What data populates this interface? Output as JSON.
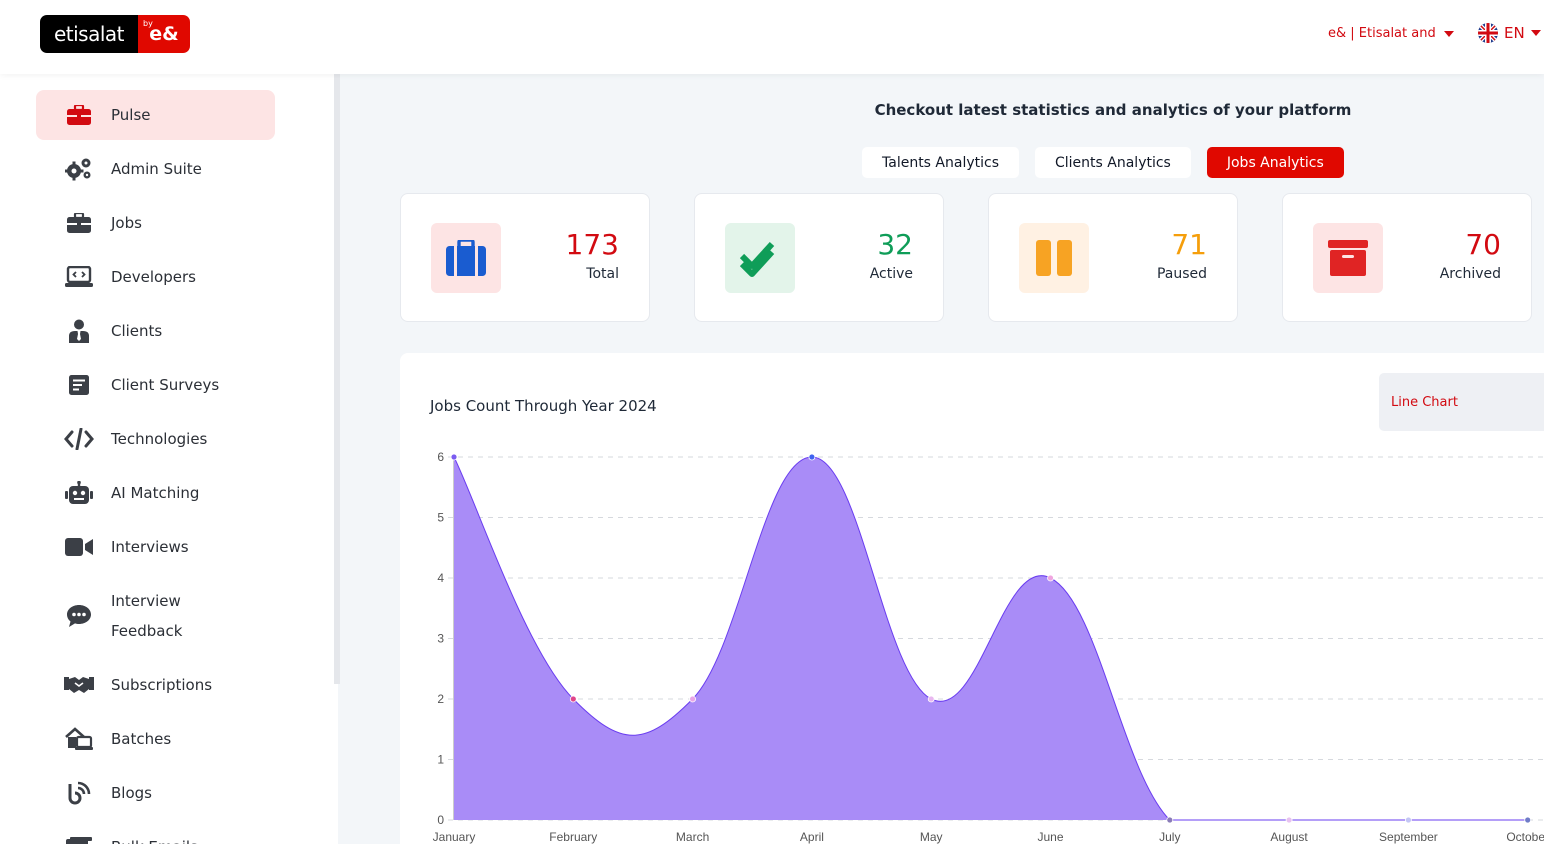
{
  "header": {
    "logo_text": "etisalat",
    "logo_by": "by",
    "logo_mark": "e&",
    "company": "e& | Etisalat and",
    "language": "EN"
  },
  "sidebar": {
    "items": [
      {
        "label": "Pulse",
        "icon": "briefcase-icon",
        "active": true
      },
      {
        "label": "Admin Suite",
        "icon": "gears-icon"
      },
      {
        "label": "Jobs",
        "icon": "briefcase-icon"
      },
      {
        "label": "Developers",
        "icon": "laptop-code-icon"
      },
      {
        "label": "Clients",
        "icon": "user-tie-icon"
      },
      {
        "label": "Client Surveys",
        "icon": "survey-icon"
      },
      {
        "label": "Technologies",
        "icon": "code-icon"
      },
      {
        "label": "AI Matching",
        "icon": "robot-icon"
      },
      {
        "label": "Interviews",
        "icon": "video-icon"
      },
      {
        "label": "Interview",
        "label2": "Feedback",
        "icon": "comment-dots-icon"
      },
      {
        "label": "Subscriptions",
        "icon": "handshake-icon"
      },
      {
        "label": "Batches",
        "icon": "house-laptop-icon"
      },
      {
        "label": "Blogs",
        "icon": "blog-icon"
      },
      {
        "label": "Bulk Emails",
        "icon": "email-icon"
      }
    ]
  },
  "main": {
    "headline": "Checkout latest statistics and analytics of your platform",
    "tabs": [
      {
        "label": "Talents Analytics"
      },
      {
        "label": "Clients Analytics"
      },
      {
        "label": "Jobs Analytics",
        "active": true
      }
    ],
    "stats": [
      {
        "value": "173",
        "label": "Total",
        "color": "#d20a11",
        "icon": "briefcase-icon",
        "icon_color": "#1a5cd0",
        "bg": "#fde4e4"
      },
      {
        "value": "32",
        "label": "Active",
        "color": "#0f9d58",
        "icon": "check-double-icon",
        "icon_color": "#0f9d58",
        "bg": "#e3f4ea"
      },
      {
        "value": "71",
        "label": "Paused",
        "color": "#f59e0b",
        "icon": "pause-icon",
        "icon_color": "#f7a323",
        "bg": "#fff1e3"
      },
      {
        "value": "70",
        "label": "Archived",
        "color": "#d20a11",
        "icon": "archive-icon",
        "icon_color": "#e02424",
        "bg": "#fde4e4"
      }
    ],
    "chart_type_select": "Line Chart"
  },
  "chart_data": {
    "type": "area",
    "title": "Jobs Count Through Year 2024",
    "categories": [
      "January",
      "February",
      "March",
      "April",
      "May",
      "June",
      "July",
      "August",
      "September",
      "October"
    ],
    "values": [
      6,
      2,
      2,
      6,
      2,
      4,
      0,
      0,
      0,
      0
    ],
    "y_ticks": [
      "0",
      "1",
      "2",
      "3",
      "4",
      "5",
      "6"
    ],
    "ylim": [
      0,
      6
    ],
    "grid": true,
    "fill_color": "#a98cf7",
    "line_color": "#6a3df0"
  }
}
